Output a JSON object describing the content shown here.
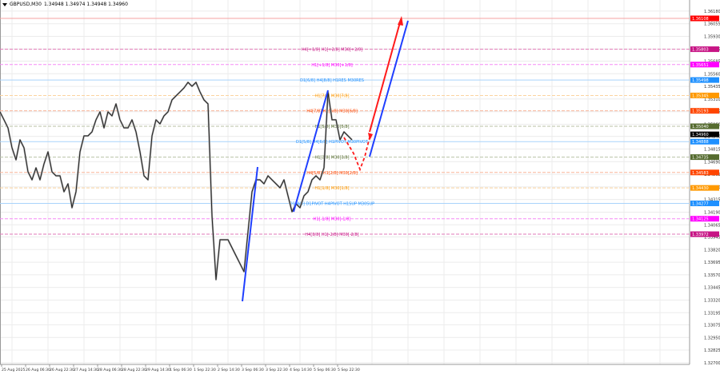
{
  "header": {
    "menu_icon": "triangle-down-icon",
    "symbol": "GBPUSD,M30",
    "ohlc": "1.34948 1.34974 1.34948 1.34960"
  },
  "chart_data": {
    "type": "line",
    "symbol": "GBPUSD",
    "timeframe": "M30",
    "grid": true,
    "ylim": [
      1.327,
      1.3618
    ],
    "y_ticks": [
      "1.36180",
      "1.36055",
      "1.35930",
      "1.35805",
      "1.35685",
      "1.35560",
      "1.35435",
      "1.35310",
      "1.35185",
      "1.35060",
      "1.34940",
      "1.34815",
      "1.34690",
      "1.34565",
      "1.34440",
      "1.34315",
      "1.34190",
      "1.34065",
      "1.33945",
      "1.33820",
      "1.33695",
      "1.33570",
      "1.33445",
      "1.33320",
      "1.33195",
      "1.33075",
      "1.32950",
      "1.32825",
      "1.32700"
    ],
    "x_ticks": [
      "25 Aug 2025",
      "26 Aug 06:30",
      "26 Aug 22:30",
      "27 Aug 14:30",
      "28 Aug 06:30",
      "28 Aug 22:30",
      "29 Aug 14:30",
      "1 Sep 06:30",
      "1 Sep 22:30",
      "2 Sep 14:30",
      "3 Sep 06:30",
      "3 Sep 22:30",
      "4 Sep 14:30",
      "5 Sep 06:30",
      "5 Sep 22:30"
    ],
    "price_series": [
      1.35183,
      1.35104,
      1.35024,
      1.34827,
      1.34708,
      1.34906,
      1.34827,
      1.34589,
      1.3451,
      1.34629,
      1.3451,
      1.34668,
      1.34787,
      1.34589,
      1.3455,
      1.3455,
      1.34392,
      1.34471,
      1.34234,
      1.34392,
      1.34787,
      1.34945,
      1.34945,
      1.34985,
      1.35104,
      1.35183,
      1.35024,
      1.35183,
      1.35143,
      1.35262,
      1.35104,
      1.35024,
      1.35024,
      1.35104,
      1.34985,
      1.34787,
      1.3455,
      1.3451,
      1.34945,
      1.35104,
      1.35064,
      1.35143,
      1.35183,
      1.35301,
      1.35341,
      1.3538,
      1.3542,
      1.35475,
      1.35436,
      1.35475,
      1.3538,
      1.35301,
      1.35262,
      1.34154,
      1.33522,
      1.33917,
      1.33917,
      1.33917,
      1.33838,
      1.33759,
      1.3368,
      1.33601,
      1.33996,
      1.34392,
      1.3451,
      1.3451,
      1.34471,
      1.3455,
      1.3451,
      1.34471,
      1.34431,
      1.3451,
      1.34352,
      1.34194,
      1.34273,
      1.34234,
      1.34352,
      1.34392,
      1.3451,
      1.3455,
      1.3451,
      1.34629,
      1.3538,
      1.35104,
      1.35104,
      1.34906,
      1.34985,
      1.34945,
      1.34906
    ],
    "current_price": {
      "value": 1.3496,
      "label": "1.34960",
      "color": "#000000"
    },
    "levels": [
      {
        "label": "",
        "price": 1.36108,
        "tag": "1.36108",
        "color": "#ff0000",
        "line_color": "#f5a3a3",
        "style": "solid"
      },
      {
        "label": "H4[+1/8] H1[+2/8] M30[+2/8]",
        "price": 1.35803,
        "tag": "1.35803",
        "color": "#c71585",
        "line_color": "#e27ab8",
        "style": "dashed"
      },
      {
        "label": "H1[+1/8] M30[+1/8]",
        "price": 1.35651,
        "tag": "1.35651",
        "color": "#ff00ff",
        "line_color": "#f58cf5",
        "style": "dashed"
      },
      {
        "label": "D1[6/8] H4[8/8] H1RES M30RES",
        "price": 1.35498,
        "tag": "1.35498",
        "color": "#1e90ff",
        "line_color": "#a9d3fb",
        "style": "solid"
      },
      {
        "label": "H1[7/8] M30[7/8]",
        "price": 1.35345,
        "tag": "1.35345",
        "color": "#ff9900",
        "line_color": "#fbd3a0",
        "style": "dashed"
      },
      {
        "label": "H4[7/8] H1[6/8] M30[6/8]",
        "price": 1.35193,
        "tag": "1.35193",
        "color": "#ff4500",
        "line_color": "#f9b59a",
        "style": "dashed"
      },
      {
        "label": "H1[5/8] M30[5/8]",
        "price": 1.3504,
        "tag": "1.35040",
        "color": "#556b2f",
        "line_color": "#b9c2a6",
        "style": "dashed"
      },
      {
        "label": "D1[5/8] H4[6/8] H1PIVOT M30PIVOT",
        "price": 1.34888,
        "tag": "1.34888",
        "color": "#1e90ff",
        "line_color": "#a9d3fb",
        "style": "solid"
      },
      {
        "label": "H1[3/8] M30[3/8]",
        "price": 1.34735,
        "tag": "1.34735",
        "color": "#556b2f",
        "line_color": "#b9c2a6",
        "style": "dashed"
      },
      {
        "label": "H4[5/8] H1[2/8] M30[2/8]",
        "price": 1.34583,
        "tag": "1.34583",
        "color": "#ff4500",
        "line_color": "#f9b59a",
        "style": "dashed"
      },
      {
        "label": "H1[1/8] M30[1/8]",
        "price": 1.3443,
        "tag": "1.34430",
        "color": "#ff9900",
        "line_color": "#fbd3a0",
        "style": "dashed"
      },
      {
        "label": "D1[4/8] D1PIVOT H4PIVOT H1SUP M30SUP",
        "price": 1.34277,
        "tag": "1.34277",
        "color": "#1e90ff",
        "line_color": "#a9d3fb",
        "style": "solid"
      },
      {
        "label": "H1[-1/8] M30[-1/8]",
        "price": 1.34125,
        "tag": "1.34125",
        "color": "#ff00ff",
        "line_color": "#f58cf5",
        "style": "dashed"
      },
      {
        "label": "H4[3/8] H1[-2/8] M30[-2/8]",
        "price": 1.33972,
        "tag": "1.33972",
        "color": "#c71585",
        "line_color": "#e27ab8",
        "style": "dashed"
      }
    ],
    "annotation_colors": {
      "trend": "#1f3fff",
      "forecast": "#ff1a1a"
    }
  }
}
